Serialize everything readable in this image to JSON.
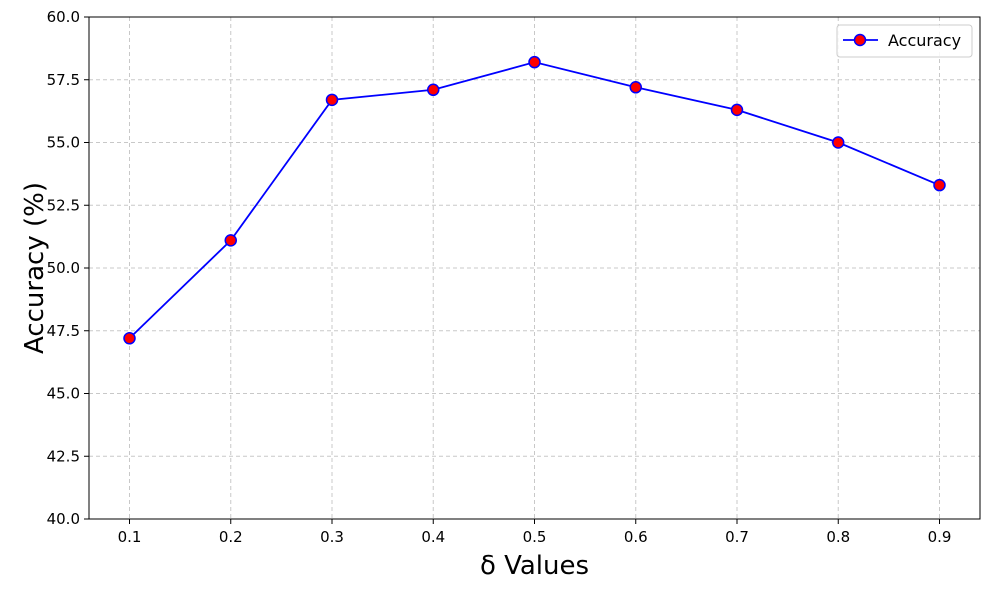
{
  "chart_data": {
    "type": "line",
    "title": "",
    "xlabel": "δ Values",
    "ylabel": "Accuracy (%)",
    "x": [
      0.1,
      0.2,
      0.3,
      0.4,
      0.5,
      0.6,
      0.7,
      0.8,
      0.9
    ],
    "x_tick_labels": [
      "0.1",
      "0.2",
      "0.3",
      "0.4",
      "0.5",
      "0.6",
      "0.7",
      "0.8",
      "0.9"
    ],
    "xlim": [
      0.06,
      0.94
    ],
    "ylim": [
      40.0,
      60.0
    ],
    "y_ticks": [
      40.0,
      42.5,
      45.0,
      47.5,
      50.0,
      52.5,
      55.0,
      57.5,
      60.0
    ],
    "y_tick_labels": [
      "40.0",
      "42.5",
      "45.0",
      "47.5",
      "50.0",
      "52.5",
      "55.0",
      "57.5",
      "60.0"
    ],
    "series": [
      {
        "name": "Accuracy",
        "values": [
          47.2,
          51.1,
          56.7,
          57.1,
          58.2,
          57.2,
          56.3,
          55.0,
          53.3
        ],
        "line_color": "#0000ff",
        "marker_face": "#ff0000",
        "marker_edge": "#0000ff",
        "marker": "circle"
      }
    ],
    "grid": true,
    "grid_style": "dashed",
    "legend_position": "top-right"
  }
}
